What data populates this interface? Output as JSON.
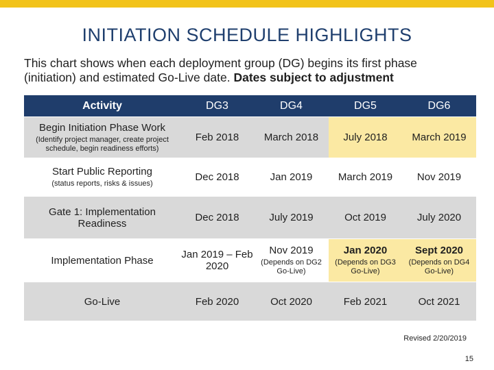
{
  "slide": {
    "title": "INITIATION SCHEDULE HIGHLIGHTS",
    "intro_text": "This chart shows when each deployment group (DG) begins its first phase (initiation) and estimated Go-Live date. ",
    "intro_bold": "Dates subject to adjustment",
    "revised": "Revised 2/20/2019",
    "page_number": "15",
    "accent_color": "#f2c31a",
    "header_color": "#1f3d6b",
    "highlight_color": "#fbe9a3"
  },
  "table": {
    "headers": [
      "Activity",
      "DG3",
      "DG4",
      "DG5",
      "DG6"
    ],
    "rows": [
      {
        "activity": "Begin Initiation Phase Work",
        "activity_note": "(Identify project manager, create project schedule, begin readiness efforts)",
        "dg3": "Feb 2018",
        "dg4": "March 2018",
        "dg5": "July 2018",
        "dg6": "March 2019"
      },
      {
        "activity": "Start Public Reporting",
        "activity_note": "(status reports, risks & issues)",
        "dg3": "Dec 2018",
        "dg4": "Jan 2019",
        "dg5": "March 2019",
        "dg6": "Nov 2019"
      },
      {
        "activity": "Gate 1: Implementation Readiness",
        "dg3": "Dec 2018",
        "dg4": "July 2019",
        "dg5": "Oct 2019",
        "dg6": "July 2020"
      },
      {
        "activity": "Implementation Phase",
        "dg3": "Jan 2019 – Feb 2020",
        "dg4": "Nov 2019",
        "dg4_note": "(Depends on DG2 Go-Live)",
        "dg5": "Jan 2020",
        "dg5_note": "(Depends on DG3 Go-Live)",
        "dg6": "Sept 2020",
        "dg6_note": "(Depends on DG4 Go-Live)"
      },
      {
        "activity": "Go-Live",
        "dg3": "Feb 2020",
        "dg4": "Oct 2020",
        "dg5": "Feb 2021",
        "dg6": "Oct 2021"
      }
    ]
  }
}
